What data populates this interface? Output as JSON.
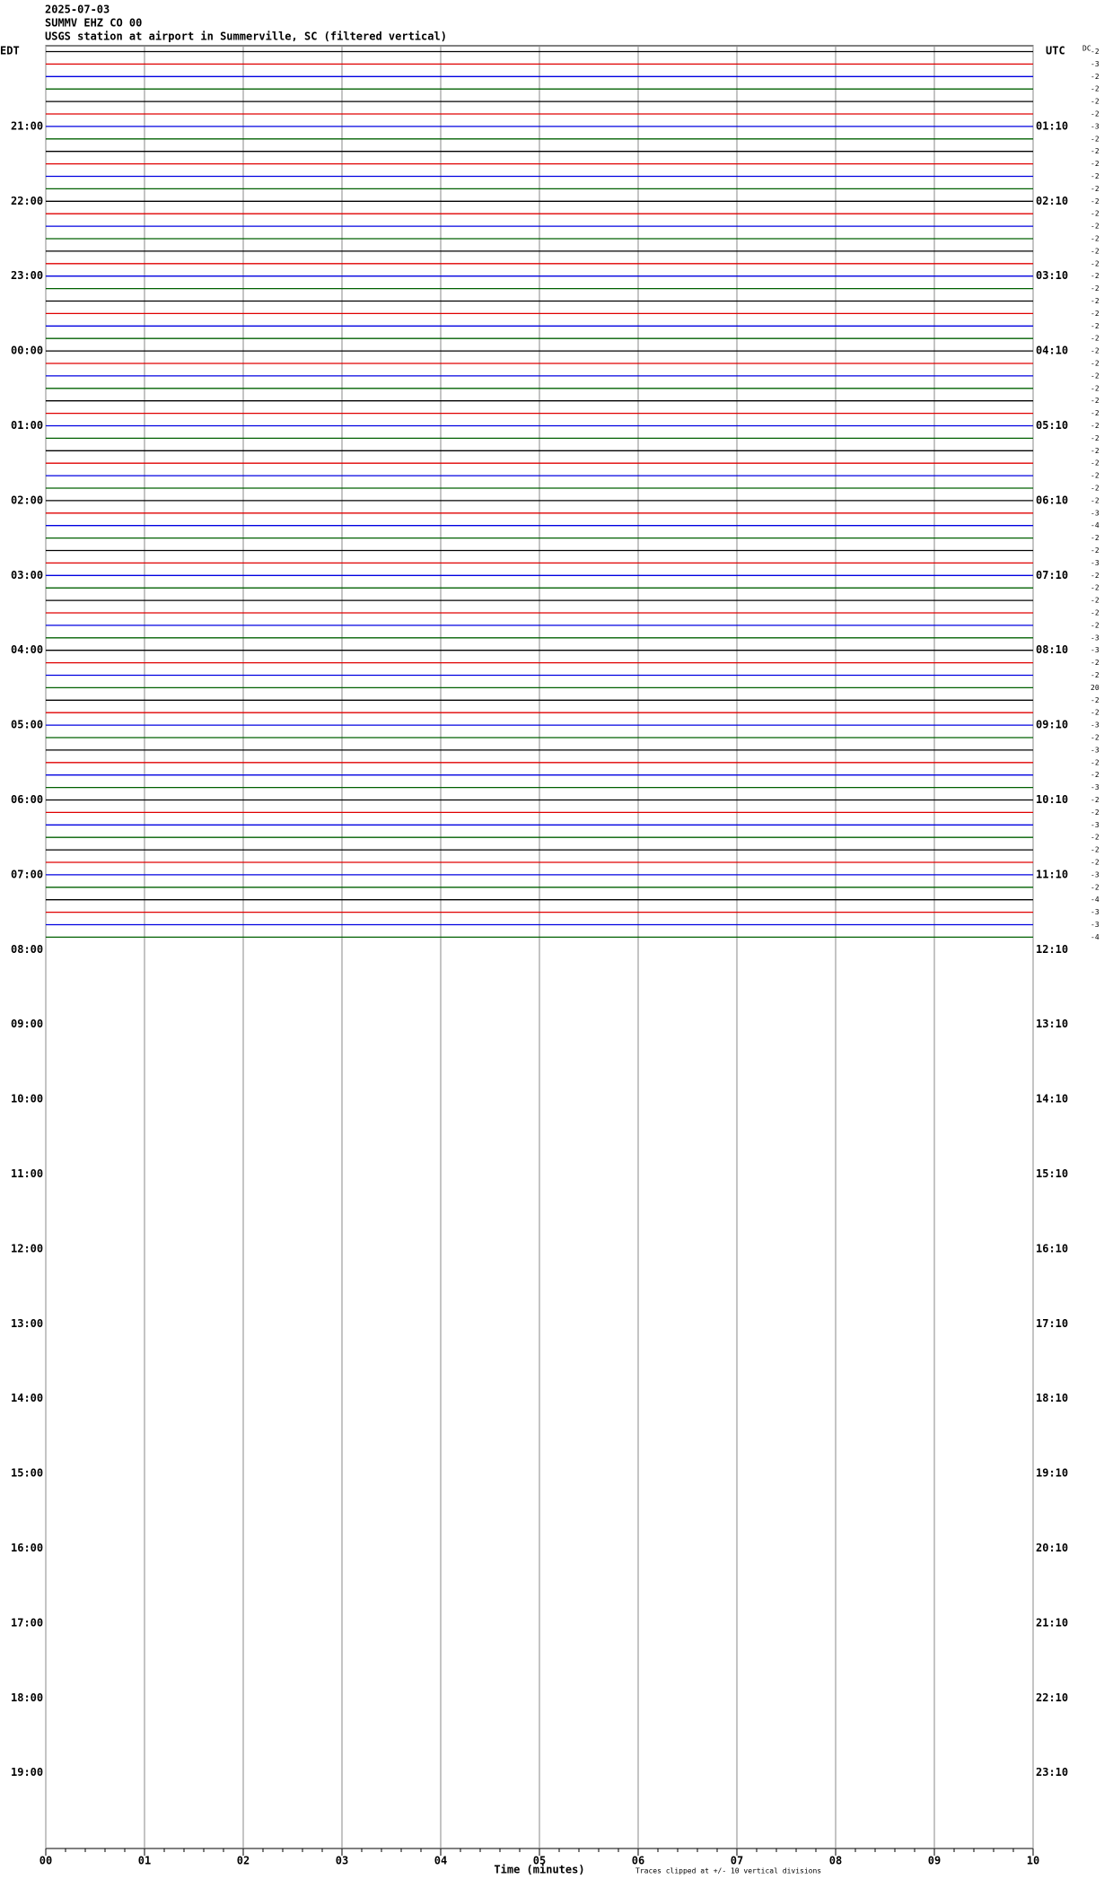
{
  "chart_data": {
    "type": "helicorder",
    "date": "2025-07-03",
    "station": "SUMMV EHZ CO 00",
    "title": "USGS station at airport in Summerville, SC (filtered vertical)",
    "left_zone": "EDT",
    "right_zone": "UTC",
    "dc_header": "DC",
    "left_hours": [
      "21:00",
      "22:00",
      "23:00",
      "00:00",
      "01:00",
      "02:00",
      "03:00",
      "04:00",
      "05:00",
      "06:00",
      "07:00",
      "08:00",
      "09:00",
      "10:00",
      "11:00",
      "12:00",
      "13:00",
      "14:00",
      "15:00",
      "16:00",
      "17:00",
      "18:00",
      "19:00"
    ],
    "right_hours": [
      "01:10",
      "02:10",
      "03:10",
      "04:10",
      "05:10",
      "06:10",
      "07:10",
      "08:10",
      "09:10",
      "10:10",
      "11:10",
      "12:10",
      "13:10",
      "14:10",
      "15:10",
      "16:10",
      "17:10",
      "18:10",
      "19:10",
      "20:10",
      "21:10",
      "22:10",
      "23:10"
    ],
    "trace_colors": [
      "#000000",
      "#e00000",
      "#0000e0",
      "#006000"
    ],
    "dc": [
      -2,
      -3,
      -2,
      -2,
      -2,
      -2,
      -3,
      -2,
      -2,
      -2,
      -2,
      -2,
      -2,
      -2,
      -2,
      -2,
      -2,
      -2,
      -2,
      -2,
      -2,
      -2,
      -2,
      -2,
      -2,
      -2,
      -2,
      -2,
      -2,
      -2,
      -2,
      -2,
      -2,
      -2,
      -2,
      -2,
      -2,
      -3,
      -4,
      -2,
      -2,
      -3,
      -2,
      -2,
      -2,
      -2,
      -2,
      -3,
      -3,
      -2,
      -2,
      20,
      -2,
      -2,
      -3,
      -2,
      -3,
      -2,
      -2,
      -3,
      -2,
      -2,
      -3,
      -2,
      -2,
      -2,
      -3,
      -2,
      -4,
      -3,
      -3,
      -4
    ],
    "xlim": [
      0,
      10
    ],
    "xticks": [
      {
        "value": 0,
        "label": "00"
      },
      {
        "value": 1,
        "label": "01"
      },
      {
        "value": 2,
        "label": "02"
      },
      {
        "value": 3,
        "label": "03"
      },
      {
        "value": 4,
        "label": "04"
      },
      {
        "value": 5,
        "label": "05"
      },
      {
        "value": 6,
        "label": "06"
      },
      {
        "value": 7,
        "label": "07"
      },
      {
        "value": 8,
        "label": "08"
      },
      {
        "value": 9,
        "label": "09"
      },
      10
    ],
    "xlabel": "Time (minutes)",
    "note": "Traces clipped at +/- 10 vertical divisions"
  }
}
